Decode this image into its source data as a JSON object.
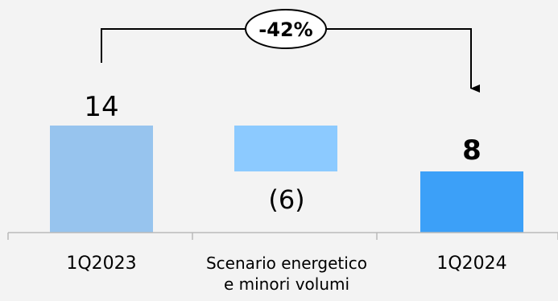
{
  "chart_data": {
    "type": "bar",
    "subtype": "waterfall",
    "categories": [
      "1Q2023",
      [
        "Scenario energetico",
        "e minori volumi"
      ],
      "1Q2024"
    ],
    "values": [
      14,
      -6,
      8
    ],
    "value_labels": [
      "14",
      "(6)",
      "8"
    ],
    "bar_colors": [
      "#97c4ee",
      "#8ccaff",
      "#3ca0f8"
    ],
    "ylim": [
      0,
      15
    ],
    "title": "",
    "xlabel": "",
    "ylabel": "",
    "grid": false,
    "annotation": {
      "label": "-42%",
      "from_category": "1Q2023",
      "to_category": "1Q2024"
    }
  }
}
